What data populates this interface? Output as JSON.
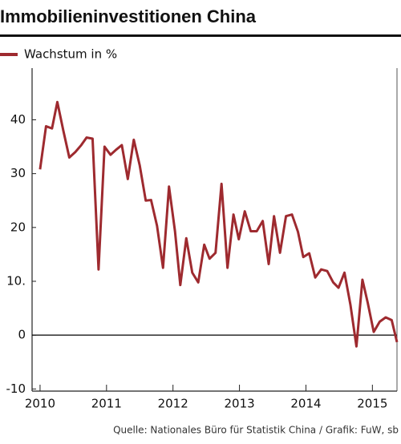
{
  "chart_data": {
    "type": "line",
    "title": "Immobilieninvestitionen China",
    "source": "Quelle: Nationales Büro für Statistik China / Grafik: FuW, sb",
    "x": [
      2010.0,
      2010.09,
      2010.18,
      2010.26,
      2010.35,
      2010.44,
      2010.53,
      2010.62,
      2010.7,
      2010.79,
      2010.88,
      2010.97,
      2011.06,
      2011.15,
      2011.23,
      2011.32,
      2011.41,
      2011.5,
      2011.59,
      2011.67,
      2011.76,
      2011.85,
      2011.94,
      2012.03,
      2012.11,
      2012.2,
      2012.29,
      2012.38,
      2012.47,
      2012.55,
      2012.64,
      2012.73,
      2012.82,
      2012.91,
      2012.99,
      2013.08,
      2013.17,
      2013.26,
      2013.35,
      2013.44,
      2013.52,
      2013.61,
      2013.7,
      2013.79,
      2013.88,
      2013.96,
      2014.05,
      2014.14,
      2014.23,
      2014.32,
      2014.41,
      2014.49,
      2014.58,
      2014.67,
      2014.76,
      2014.85,
      2014.93,
      2015.02,
      2015.11,
      2015.2,
      2015.29,
      2015.37
    ],
    "series": [
      {
        "name": "Wachstum in %",
        "color": "#9e2a2f",
        "values": [
          30.8,
          38.8,
          38.4,
          43.3,
          38,
          33,
          34,
          35.3,
          36.7,
          36.5,
          12.2,
          35,
          33.5,
          34.5,
          35.3,
          29,
          36.3,
          31.5,
          25,
          25.1,
          20.3,
          12.5,
          27.6,
          19.3,
          9.3,
          18,
          11.6,
          9.8,
          16.8,
          14.2,
          15.3,
          28.1,
          12.5,
          22.4,
          17.8,
          23,
          19.3,
          19.3,
          21.2,
          13.2,
          22.1,
          15.3,
          22.1,
          22.4,
          19.2,
          14.5,
          15.2,
          10.7,
          12.2,
          11.9,
          9.8,
          8.8,
          11.6,
          5.6,
          -2.1,
          10.3,
          6,
          0.6,
          2.5,
          3.3,
          2.8,
          -1.3
        ]
      }
    ],
    "xlim": [
      2009.88,
      2015.37
    ],
    "xticks": [
      2010,
      2011,
      2012,
      2013,
      2014,
      2015
    ],
    "ylim": [
      -10.4,
      49.6
    ],
    "yticks": [
      -10,
      0,
      {
        "value": 10,
        "label": "10."
      },
      20,
      30,
      40
    ],
    "zero_line": true
  }
}
